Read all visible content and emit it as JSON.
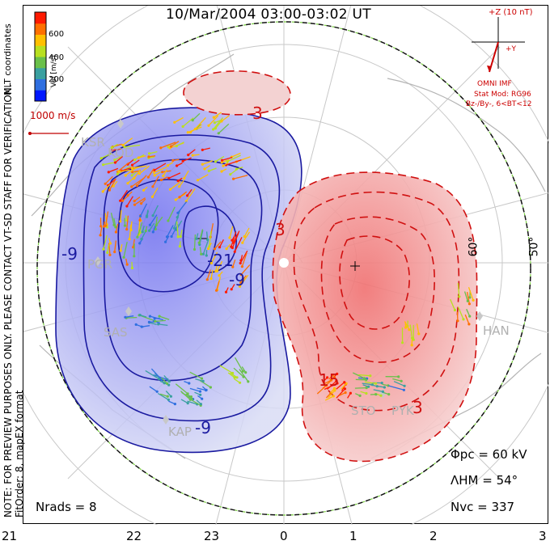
{
  "title": "10/Mar/2004 03:00-03:02 UT",
  "coordinate_label": "MLT coordinates",
  "colorbar": {
    "label": "Vel [m/s]",
    "ticks": [
      "600",
      "400",
      "200"
    ],
    "colors": [
      "#0018ff",
      "#2f6fe0",
      "#3aa0a0",
      "#6ac04a",
      "#b8e020",
      "#ffc000",
      "#ff7000",
      "#ff1a00"
    ]
  },
  "vector_scale": "1000 m/s",
  "imf": {
    "z_label": "+Z (10 nT)",
    "y_label": "+Y",
    "source": "OMNI IMF",
    "model": "Stat Mod: RG96",
    "bin": "Bz-/By-, 6<BT<12",
    "color": "#cc0000"
  },
  "latitude_labels": [
    "60°",
    "50°"
  ],
  "mlt_axis": [
    "21",
    "22",
    "23",
    "0",
    "1",
    "2",
    "3"
  ],
  "stations": [
    "KSR",
    "KOD",
    "PGR",
    "SAS",
    "KAP",
    "HAN",
    "STO",
    "PYK"
  ],
  "contours": {
    "neg": [
      "-9",
      "-9",
      "-9",
      "-21"
    ],
    "pos": [
      "3",
      "3",
      "15",
      "3"
    ],
    "neg_color": "#1a1aa0",
    "pos_color": "#d01010"
  },
  "stats": {
    "phi_pc": "Φpc = 60 kV",
    "lambda_hm": "ΛHM = 54°",
    "n_vc": "Nvc = 337",
    "n_rads": "Nrads = 8"
  },
  "note_lines": [
    "NOTE: FOR PREVIEW PURPOSES ONLY. PLEASE CONTACT VT-SD STAFF FOR VERIFICATION.",
    "FitOrder: 8, mapEX format"
  ]
}
